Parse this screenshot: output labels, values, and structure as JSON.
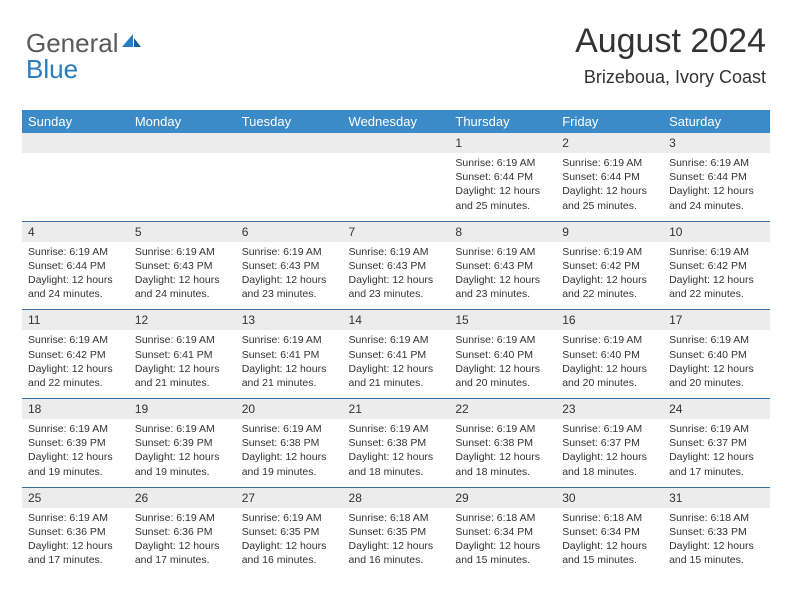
{
  "brand": {
    "gray": "General",
    "blue": "Blue"
  },
  "title": "August 2024",
  "location": "Brizeboua, Ivory Coast",
  "colors": {
    "header_bg": "#3b8bc9",
    "header_text": "#ffffff",
    "daynum_bg": "#ececec",
    "row_border": "#3b6ea0",
    "text": "#333333",
    "logo_gray": "#5a5a5a",
    "logo_blue": "#2b7bbf",
    "page_bg": "#ffffff"
  },
  "weekdays": [
    "Sunday",
    "Monday",
    "Tuesday",
    "Wednesday",
    "Thursday",
    "Friday",
    "Saturday"
  ],
  "weeks": [
    {
      "nums": [
        "",
        "",
        "",
        "",
        "1",
        "2",
        "3"
      ],
      "cells": [
        null,
        null,
        null,
        null,
        {
          "sunrise": "6:19 AM",
          "sunset": "6:44 PM",
          "daylight": "12 hours and 25 minutes."
        },
        {
          "sunrise": "6:19 AM",
          "sunset": "6:44 PM",
          "daylight": "12 hours and 25 minutes."
        },
        {
          "sunrise": "6:19 AM",
          "sunset": "6:44 PM",
          "daylight": "12 hours and 24 minutes."
        }
      ]
    },
    {
      "nums": [
        "4",
        "5",
        "6",
        "7",
        "8",
        "9",
        "10"
      ],
      "cells": [
        {
          "sunrise": "6:19 AM",
          "sunset": "6:44 PM",
          "daylight": "12 hours and 24 minutes."
        },
        {
          "sunrise": "6:19 AM",
          "sunset": "6:43 PM",
          "daylight": "12 hours and 24 minutes."
        },
        {
          "sunrise": "6:19 AM",
          "sunset": "6:43 PM",
          "daylight": "12 hours and 23 minutes."
        },
        {
          "sunrise": "6:19 AM",
          "sunset": "6:43 PM",
          "daylight": "12 hours and 23 minutes."
        },
        {
          "sunrise": "6:19 AM",
          "sunset": "6:43 PM",
          "daylight": "12 hours and 23 minutes."
        },
        {
          "sunrise": "6:19 AM",
          "sunset": "6:42 PM",
          "daylight": "12 hours and 22 minutes."
        },
        {
          "sunrise": "6:19 AM",
          "sunset": "6:42 PM",
          "daylight": "12 hours and 22 minutes."
        }
      ]
    },
    {
      "nums": [
        "11",
        "12",
        "13",
        "14",
        "15",
        "16",
        "17"
      ],
      "cells": [
        {
          "sunrise": "6:19 AM",
          "sunset": "6:42 PM",
          "daylight": "12 hours and 22 minutes."
        },
        {
          "sunrise": "6:19 AM",
          "sunset": "6:41 PM",
          "daylight": "12 hours and 21 minutes."
        },
        {
          "sunrise": "6:19 AM",
          "sunset": "6:41 PM",
          "daylight": "12 hours and 21 minutes."
        },
        {
          "sunrise": "6:19 AM",
          "sunset": "6:41 PM",
          "daylight": "12 hours and 21 minutes."
        },
        {
          "sunrise": "6:19 AM",
          "sunset": "6:40 PM",
          "daylight": "12 hours and 20 minutes."
        },
        {
          "sunrise": "6:19 AM",
          "sunset": "6:40 PM",
          "daylight": "12 hours and 20 minutes."
        },
        {
          "sunrise": "6:19 AM",
          "sunset": "6:40 PM",
          "daylight": "12 hours and 20 minutes."
        }
      ]
    },
    {
      "nums": [
        "18",
        "19",
        "20",
        "21",
        "22",
        "23",
        "24"
      ],
      "cells": [
        {
          "sunrise": "6:19 AM",
          "sunset": "6:39 PM",
          "daylight": "12 hours and 19 minutes."
        },
        {
          "sunrise": "6:19 AM",
          "sunset": "6:39 PM",
          "daylight": "12 hours and 19 minutes."
        },
        {
          "sunrise": "6:19 AM",
          "sunset": "6:38 PM",
          "daylight": "12 hours and 19 minutes."
        },
        {
          "sunrise": "6:19 AM",
          "sunset": "6:38 PM",
          "daylight": "12 hours and 18 minutes."
        },
        {
          "sunrise": "6:19 AM",
          "sunset": "6:38 PM",
          "daylight": "12 hours and 18 minutes."
        },
        {
          "sunrise": "6:19 AM",
          "sunset": "6:37 PM",
          "daylight": "12 hours and 18 minutes."
        },
        {
          "sunrise": "6:19 AM",
          "sunset": "6:37 PM",
          "daylight": "12 hours and 17 minutes."
        }
      ]
    },
    {
      "nums": [
        "25",
        "26",
        "27",
        "28",
        "29",
        "30",
        "31"
      ],
      "cells": [
        {
          "sunrise": "6:19 AM",
          "sunset": "6:36 PM",
          "daylight": "12 hours and 17 minutes."
        },
        {
          "sunrise": "6:19 AM",
          "sunset": "6:36 PM",
          "daylight": "12 hours and 17 minutes."
        },
        {
          "sunrise": "6:19 AM",
          "sunset": "6:35 PM",
          "daylight": "12 hours and 16 minutes."
        },
        {
          "sunrise": "6:18 AM",
          "sunset": "6:35 PM",
          "daylight": "12 hours and 16 minutes."
        },
        {
          "sunrise": "6:18 AM",
          "sunset": "6:34 PM",
          "daylight": "12 hours and 15 minutes."
        },
        {
          "sunrise": "6:18 AM",
          "sunset": "6:34 PM",
          "daylight": "12 hours and 15 minutes."
        },
        {
          "sunrise": "6:18 AM",
          "sunset": "6:33 PM",
          "daylight": "12 hours and 15 minutes."
        }
      ]
    }
  ],
  "labels": {
    "sunrise": "Sunrise:",
    "sunset": "Sunset:",
    "daylight": "Daylight:"
  }
}
